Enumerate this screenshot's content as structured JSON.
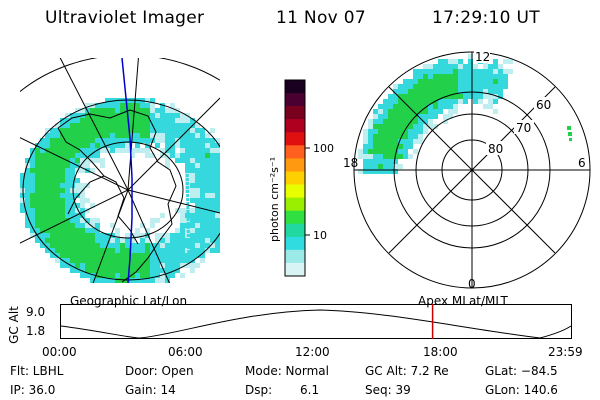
{
  "header": {
    "instrument": "Ultraviolet Imager",
    "date": "11 Nov 07",
    "time": "17:29:10 UT"
  },
  "colors": {
    "plot_frame": "#000000",
    "meridian_line": "#0000cc",
    "time_marker": "#cc0000",
    "aurora_strong": "#22d04a",
    "aurora_medium": "#35d8dc",
    "aurora_weak": "#bfeef0"
  },
  "colorbar": {
    "unit_label": "photon cm⁻²s⁻¹",
    "tick_labels": [
      "100",
      "10"
    ],
    "scale": "log",
    "colors_top_to_bottom": [
      "#1a0020",
      "#4a0030",
      "#7a0020",
      "#b00020",
      "#e01010",
      "#ff6020",
      "#ff9a10",
      "#ffd000",
      "#e8ff00",
      "#9aee00",
      "#30e040",
      "#20d8a0",
      "#30dce0",
      "#9beae8",
      "#d8f4f4"
    ]
  },
  "mlt_dial": {
    "latitude_labels": [
      "60",
      "70",
      "80"
    ],
    "mlt_labels": {
      "top": "12",
      "bottom": "0",
      "left": "18",
      "right": "6"
    }
  },
  "timeline": {
    "y_axis_label": "GC Alt",
    "y_tick_labels": [
      "9.0",
      "1.8"
    ],
    "left_caption": "Geographic Lat/Lon",
    "right_caption": "Apex  MLat/MLT",
    "x_tick_labels": [
      "00:00",
      "06:00",
      "12:00",
      "18:00",
      "23:59"
    ],
    "current_time_fraction": 0.7286
  },
  "info": {
    "flt": "Flt: LBHL",
    "door": "Door: Open",
    "mode": "Mode: Normal",
    "gc_alt": "GC Alt: 7.2 Re",
    "glat": "GLat: −84.5",
    "ip": "IP: 36.0",
    "gain": "Gain: 14",
    "dsp_label": "Dsp:",
    "dsp_value": "6.1",
    "seq": "Seq: 39",
    "glon": "GLon: 140.6"
  }
}
